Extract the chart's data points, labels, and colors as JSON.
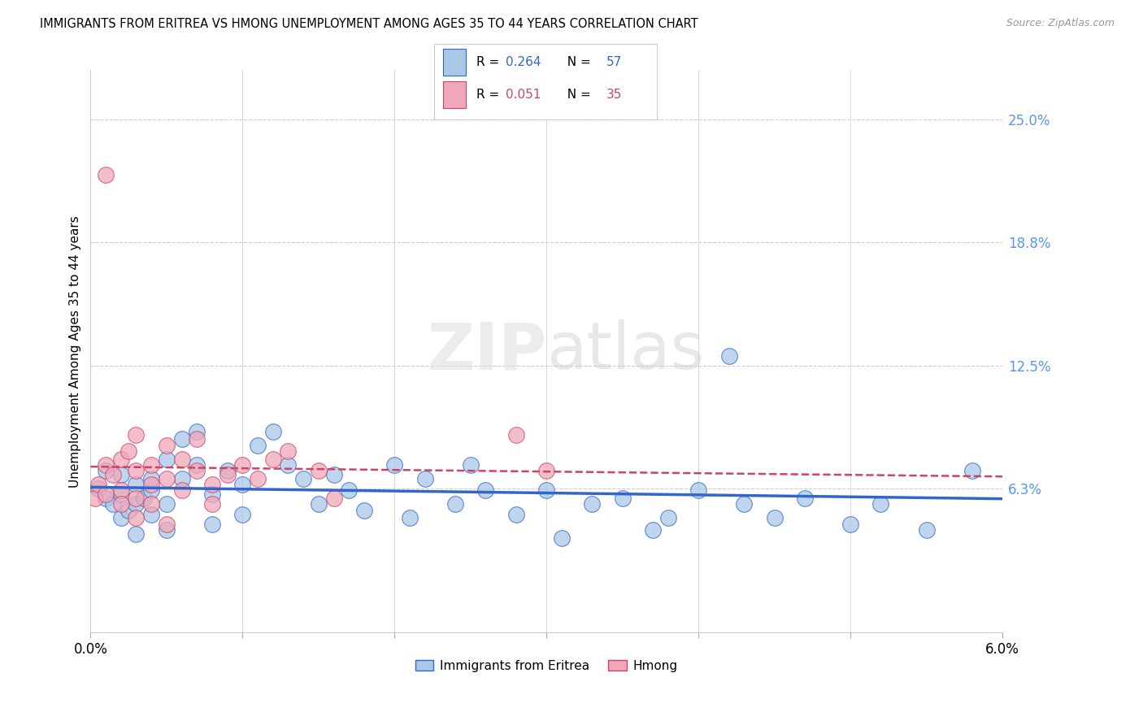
{
  "title": "IMMIGRANTS FROM ERITREA VS HMONG UNEMPLOYMENT AMONG AGES 35 TO 44 YEARS CORRELATION CHART",
  "source": "Source: ZipAtlas.com",
  "ylabel": "Unemployment Among Ages 35 to 44 years",
  "ytick_labels": [
    "25.0%",
    "18.8%",
    "12.5%",
    "6.3%"
  ],
  "ytick_vals": [
    0.25,
    0.188,
    0.125,
    0.063
  ],
  "xlim": [
    0.0,
    0.06
  ],
  "ylim": [
    -0.01,
    0.275
  ],
  "legend_eritrea": "Immigrants from Eritrea",
  "legend_hmong": "Hmong",
  "R_eritrea": "0.264",
  "N_eritrea": "57",
  "R_hmong": "0.051",
  "N_hmong": "35",
  "color_eritrea": "#a8c8e8",
  "color_eritrea_line": "#3366cc",
  "color_hmong": "#f0a8b8",
  "color_hmong_line": "#cc4466",
  "eritrea_x": [
    0.0005,
    0.001,
    0.001,
    0.0015,
    0.002,
    0.002,
    0.002,
    0.0025,
    0.003,
    0.003,
    0.003,
    0.0035,
    0.004,
    0.004,
    0.004,
    0.005,
    0.005,
    0.005,
    0.006,
    0.006,
    0.007,
    0.007,
    0.008,
    0.008,
    0.009,
    0.01,
    0.01,
    0.011,
    0.012,
    0.013,
    0.014,
    0.015,
    0.016,
    0.017,
    0.018,
    0.02,
    0.021,
    0.022,
    0.024,
    0.025,
    0.026,
    0.028,
    0.03,
    0.031,
    0.033,
    0.035,
    0.037,
    0.038,
    0.04,
    0.042,
    0.043,
    0.045,
    0.047,
    0.05,
    0.052,
    0.055,
    0.058
  ],
  "eritrea_y": [
    0.063,
    0.058,
    0.072,
    0.055,
    0.06,
    0.048,
    0.07,
    0.052,
    0.065,
    0.055,
    0.04,
    0.058,
    0.062,
    0.05,
    0.068,
    0.078,
    0.055,
    0.042,
    0.088,
    0.068,
    0.092,
    0.075,
    0.06,
    0.045,
    0.072,
    0.065,
    0.05,
    0.085,
    0.092,
    0.075,
    0.068,
    0.055,
    0.07,
    0.062,
    0.052,
    0.075,
    0.048,
    0.068,
    0.055,
    0.075,
    0.062,
    0.05,
    0.062,
    0.038,
    0.055,
    0.058,
    0.042,
    0.048,
    0.062,
    0.13,
    0.055,
    0.048,
    0.058,
    0.045,
    0.055,
    0.042,
    0.072
  ],
  "hmong_x": [
    0.0003,
    0.0005,
    0.001,
    0.001,
    0.001,
    0.0015,
    0.002,
    0.002,
    0.002,
    0.0025,
    0.003,
    0.003,
    0.003,
    0.003,
    0.004,
    0.004,
    0.004,
    0.005,
    0.005,
    0.005,
    0.006,
    0.006,
    0.007,
    0.007,
    0.008,
    0.008,
    0.009,
    0.01,
    0.011,
    0.012,
    0.013,
    0.015,
    0.016,
    0.028,
    0.03
  ],
  "hmong_y": [
    0.058,
    0.065,
    0.06,
    0.075,
    0.222,
    0.07,
    0.078,
    0.062,
    0.055,
    0.082,
    0.09,
    0.072,
    0.058,
    0.048,
    0.075,
    0.065,
    0.055,
    0.085,
    0.068,
    0.045,
    0.078,
    0.062,
    0.088,
    0.072,
    0.065,
    0.055,
    0.07,
    0.075,
    0.068,
    0.078,
    0.082,
    0.072,
    0.058,
    0.09,
    0.072
  ]
}
